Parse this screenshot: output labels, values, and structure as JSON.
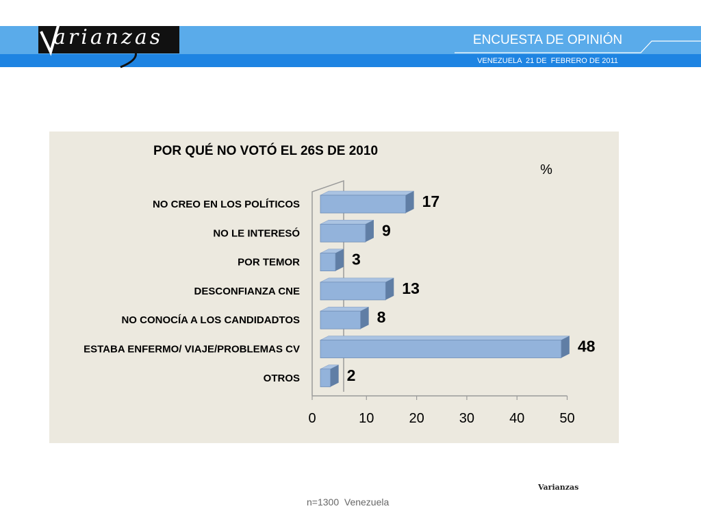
{
  "header": {
    "logo_text": "arianzas",
    "logo_initial": "V",
    "title": "ENCUESTA DE OPINIÓN",
    "subtitle": "VENEZUELA  21 DE  FEBRERO DE 2011"
  },
  "colors": {
    "band_light": "#5aabea",
    "band_dark": "#1e84e2",
    "panel_bg": "#ece9df",
    "bar_front": "#93b3db",
    "bar_top": "#aac3e2",
    "bar_side": "#607ea5"
  },
  "chart_data": {
    "type": "bar",
    "orientation": "horizontal",
    "title": "POR QUÉ NO VOTÓ EL 26S DE 2010",
    "unit_label": "%",
    "categories": [
      "NO CREO EN LOS POLÍTICOS",
      "NO LE INTERESÓ",
      "POR TEMOR",
      "DESCONFIANZA  CNE",
      "NO CONOCÍA A LOS CANDIDADTOS",
      "ESTABA  ENFERMO/ VIAJE/PROBLEMAS CV",
      "OTROS"
    ],
    "values": [
      17,
      9,
      3,
      13,
      8,
      48,
      2
    ],
    "xlim": [
      0,
      50
    ],
    "xticks": [
      "0",
      "10",
      "20",
      "30",
      "40",
      "50"
    ],
    "grid": false,
    "legend": "none"
  },
  "footer": {
    "brand": "Varianzas",
    "note": "n=1300  Venezuela"
  }
}
